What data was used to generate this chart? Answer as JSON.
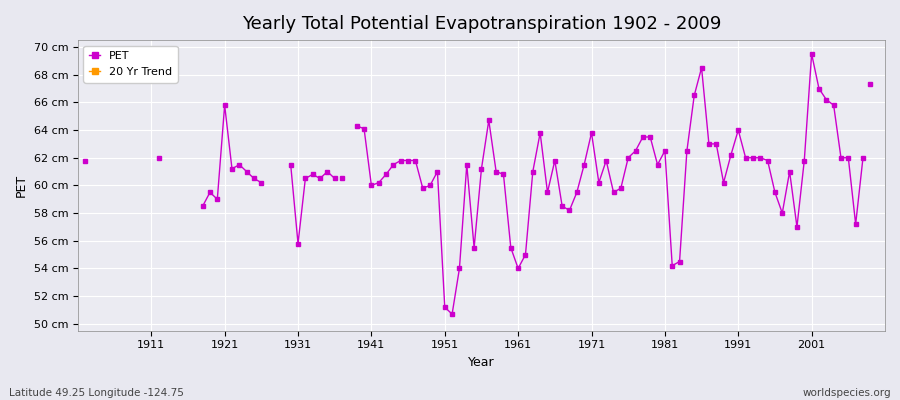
{
  "title": "Yearly Total Potential Evapotranspiration 1902 - 2009",
  "xlabel": "Year",
  "ylabel": "PET",
  "subtitle_left": "Latitude 49.25 Longitude -124.75",
  "subtitle_right": "worldspecies.org",
  "background_color": "#e8e8f0",
  "plot_bg_color": "#ebebf2",
  "grid_color": "#ffffff",
  "line_color": "#cc00cc",
  "trend_color": "#ff9900",
  "ylim": [
    49.5,
    70.5
  ],
  "yticks": [
    50,
    52,
    54,
    56,
    58,
    60,
    62,
    64,
    66,
    68,
    70
  ],
  "ytick_labels": [
    "50 cm",
    "52 cm",
    "54 cm",
    "56 cm",
    "58 cm",
    "60 cm",
    "62 cm",
    "64 cm",
    "66 cm",
    "68 cm",
    "70 cm"
  ],
  "xlim": [
    1901,
    2011
  ],
  "xticks": [
    1911,
    1921,
    1931,
    1941,
    1951,
    1961,
    1971,
    1981,
    1991,
    2001
  ],
  "segments": [
    {
      "years": [
        1902
      ],
      "values": [
        61.8
      ]
    },
    {
      "years": [
        1912
      ],
      "values": [
        62.0
      ]
    },
    {
      "years": [
        1918,
        1919,
        1920,
        1921,
        1922,
        1923,
        1924,
        1925,
        1926
      ],
      "values": [
        58.5,
        59.5,
        59.0,
        65.8,
        61.2,
        61.5,
        61.0,
        60.5,
        60.2
      ]
    },
    {
      "years": [
        1930,
        1931,
        1932,
        1933,
        1934,
        1935,
        1936
      ],
      "values": [
        61.5,
        55.8,
        60.5,
        60.8,
        60.5,
        61.0,
        60.5
      ]
    },
    {
      "years": [
        1937
      ],
      "values": [
        60.5
      ]
    },
    {
      "years": [
        1939,
        1940,
        1941,
        1942,
        1943,
        1944,
        1945,
        1946,
        1947,
        1948,
        1949,
        1950,
        1951,
        1952,
        1953,
        1954,
        1955,
        1956,
        1957,
        1958,
        1959,
        1960,
        1961,
        1962,
        1963,
        1964,
        1965,
        1966,
        1967,
        1968,
        1969,
        1970,
        1971,
        1972,
        1973,
        1974,
        1975,
        1976,
        1977,
        1978,
        1979,
        1980,
        1981,
        1982,
        1983,
        1984,
        1985,
        1986,
        1987,
        1988,
        1989,
        1990,
        1991,
        1992,
        1993,
        1994,
        1995,
        1996,
        1997,
        1998,
        1999,
        2000,
        2001,
        2002,
        2003,
        2004,
        2005,
        2006,
        2007,
        2008
      ],
      "values": [
        64.3,
        64.1,
        60.0,
        60.2,
        60.8,
        61.5,
        61.8,
        61.8,
        61.8,
        59.8,
        60.0,
        61.0,
        51.2,
        50.7,
        54.0,
        61.5,
        55.5,
        61.2,
        64.7,
        61.0,
        60.8,
        55.5,
        54.0,
        55.0,
        61.0,
        63.8,
        59.5,
        61.8,
        58.5,
        58.2,
        59.5,
        61.5,
        63.8,
        60.2,
        61.8,
        59.5,
        59.8,
        62.0,
        62.5,
        63.5,
        63.5,
        61.5,
        62.5,
        54.2,
        54.5,
        62.5,
        66.5,
        68.5,
        63.0,
        63.0,
        60.2,
        62.2,
        64.0,
        62.0,
        62.0,
        62.0,
        61.8,
        59.5,
        58.0,
        61.0,
        57.0,
        61.8,
        69.5,
        67.0,
        66.2,
        65.8,
        62.0,
        62.0,
        57.2,
        62.0
      ]
    },
    {
      "years": [
        2009
      ],
      "values": [
        67.3
      ]
    }
  ]
}
